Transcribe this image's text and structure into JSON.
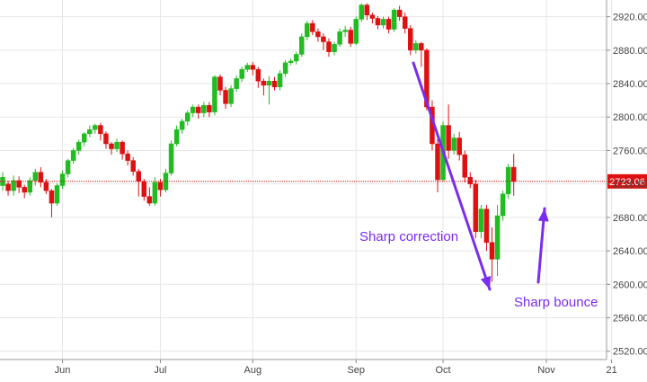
{
  "chart_data": {
    "type": "candlestick",
    "ylim": [
      2510,
      2940
    ],
    "grid": true,
    "yticks": [
      2520,
      2560,
      2600,
      2640,
      2680,
      2720,
      2760,
      2800,
      2840,
      2880,
      2920
    ],
    "ytick_labels": [
      "2520.00",
      "2560.00",
      "2600.00",
      "2640.00",
      "2680.00",
      "2720.00",
      "2760.00",
      "2800.00",
      "2840.00",
      "2880.00",
      "2920.00"
    ],
    "xticks": [
      {
        "label": "Jun",
        "index": 11
      },
      {
        "label": "Jul",
        "index": 29
      },
      {
        "label": "Aug",
        "index": 46
      },
      {
        "label": "Sep",
        "index": 65
      },
      {
        "label": "Oct",
        "index": 81
      },
      {
        "label": "Nov",
        "index": 100
      },
      {
        "label": "21",
        "index": 112
      }
    ],
    "last_value": 2723.06,
    "last_value_label": "2723.06",
    "colors": {
      "up": "#22bb22",
      "down": "#dd1111",
      "last_line": "#dd1111",
      "annotation": "#7a2cf0",
      "grid": "#e6e6e6"
    },
    "annotations": [
      {
        "text": "Sharp correction"
      },
      {
        "text": "Sharp bounce"
      }
    ],
    "candles": [
      [
        2718,
        2728,
        2712,
        2734
      ],
      [
        2720,
        2712,
        2706,
        2724
      ],
      [
        2712,
        2724,
        2706,
        2730
      ],
      [
        2724,
        2716,
        2709,
        2729
      ],
      [
        2716,
        2710,
        2703,
        2719
      ],
      [
        2710,
        2724,
        2706,
        2728
      ],
      [
        2724,
        2734,
        2718,
        2738
      ],
      [
        2734,
        2722,
        2716,
        2740
      ],
      [
        2722,
        2712,
        2708,
        2726
      ],
      [
        2712,
        2697,
        2680,
        2714
      ],
      [
        2697,
        2718,
        2694,
        2721
      ],
      [
        2718,
        2732,
        2714,
        2736
      ],
      [
        2732,
        2748,
        2728,
        2750
      ],
      [
        2748,
        2760,
        2744,
        2763
      ],
      [
        2760,
        2770,
        2755,
        2773
      ],
      [
        2770,
        2780,
        2765,
        2782
      ],
      [
        2780,
        2785,
        2776,
        2790
      ],
      [
        2785,
        2790,
        2780,
        2792
      ],
      [
        2790,
        2780,
        2772,
        2793
      ],
      [
        2780,
        2768,
        2762,
        2783
      ],
      [
        2768,
        2762,
        2755,
        2770
      ],
      [
        2762,
        2770,
        2758,
        2774
      ],
      [
        2770,
        2756,
        2749,
        2772
      ],
      [
        2756,
        2748,
        2742,
        2760
      ],
      [
        2748,
        2735,
        2730,
        2752
      ],
      [
        2735,
        2723,
        2705,
        2738
      ],
      [
        2723,
        2705,
        2700,
        2726
      ],
      [
        2705,
        2697,
        2694,
        2716
      ],
      [
        2697,
        2722,
        2694,
        2728
      ],
      [
        2722,
        2713,
        2705,
        2726
      ],
      [
        2713,
        2733,
        2710,
        2738
      ],
      [
        2733,
        2768,
        2730,
        2772
      ],
      [
        2768,
        2785,
        2765,
        2790
      ],
      [
        2785,
        2795,
        2780,
        2798
      ],
      [
        2795,
        2805,
        2790,
        2808
      ],
      [
        2805,
        2812,
        2800,
        2815
      ],
      [
        2812,
        2805,
        2798,
        2815
      ],
      [
        2805,
        2814,
        2800,
        2818
      ],
      [
        2814,
        2806,
        2800,
        2818
      ],
      [
        2806,
        2848,
        2802,
        2850
      ],
      [
        2848,
        2832,
        2826,
        2851
      ],
      [
        2832,
        2816,
        2810,
        2836
      ],
      [
        2816,
        2834,
        2812,
        2838
      ],
      [
        2834,
        2846,
        2830,
        2850
      ],
      [
        2846,
        2857,
        2842,
        2860
      ],
      [
        2857,
        2862,
        2854,
        2865
      ],
      [
        2862,
        2857,
        2850,
        2866
      ],
      [
        2857,
        2843,
        2835,
        2860
      ],
      [
        2843,
        2838,
        2826,
        2846
      ],
      [
        2838,
        2843,
        2815,
        2849
      ],
      [
        2843,
        2836,
        2832,
        2848
      ],
      [
        2836,
        2852,
        2832,
        2856
      ],
      [
        2852,
        2865,
        2848,
        2868
      ],
      [
        2865,
        2867,
        2862,
        2870
      ],
      [
        2867,
        2875,
        2863,
        2878
      ],
      [
        2875,
        2896,
        2872,
        2900
      ],
      [
        2896,
        2912,
        2892,
        2915
      ],
      [
        2912,
        2902,
        2898,
        2916
      ],
      [
        2902,
        2896,
        2890,
        2906
      ],
      [
        2896,
        2890,
        2880,
        2900
      ],
      [
        2890,
        2878,
        2872,
        2894
      ],
      [
        2878,
        2887,
        2874,
        2890
      ],
      [
        2887,
        2902,
        2884,
        2906
      ],
      [
        2902,
        2904,
        2896,
        2909
      ],
      [
        2904,
        2888,
        2884,
        2908
      ],
      [
        2888,
        2917,
        2886,
        2920
      ],
      [
        2917,
        2934,
        2914,
        2936
      ],
      [
        2934,
        2922,
        2916,
        2936
      ],
      [
        2922,
        2918,
        2912,
        2925
      ],
      [
        2918,
        2910,
        2905,
        2921
      ],
      [
        2910,
        2917,
        2906,
        2920
      ],
      [
        2917,
        2905,
        2900,
        2920
      ],
      [
        2905,
        2928,
        2902,
        2930
      ],
      [
        2928,
        2920,
        2915,
        2933
      ],
      [
        2920,
        2906,
        2900,
        2925
      ],
      [
        2906,
        2880,
        2874,
        2910
      ],
      [
        2880,
        2888,
        2876,
        2892
      ],
      [
        2888,
        2880,
        2860,
        2890
      ],
      [
        2880,
        2812,
        2808,
        2882
      ],
      [
        2812,
        2768,
        2760,
        2820
      ],
      [
        2768,
        2725,
        2710,
        2774
      ],
      [
        2725,
        2790,
        2723,
        2795
      ],
      [
        2790,
        2760,
        2750,
        2815
      ],
      [
        2760,
        2775,
        2755,
        2780
      ],
      [
        2775,
        2755,
        2748,
        2782
      ],
      [
        2755,
        2728,
        2722,
        2760
      ],
      [
        2728,
        2720,
        2715,
        2734
      ],
      [
        2720,
        2663,
        2655,
        2725
      ],
      [
        2663,
        2690,
        2655,
        2695
      ],
      [
        2690,
        2650,
        2640,
        2695
      ],
      [
        2650,
        2630,
        2603,
        2668
      ],
      [
        2630,
        2682,
        2610,
        2695
      ],
      [
        2682,
        2708,
        2676,
        2712
      ],
      [
        2708,
        2740,
        2702,
        2744
      ],
      [
        2740,
        2723,
        2706,
        2756
      ]
    ]
  }
}
